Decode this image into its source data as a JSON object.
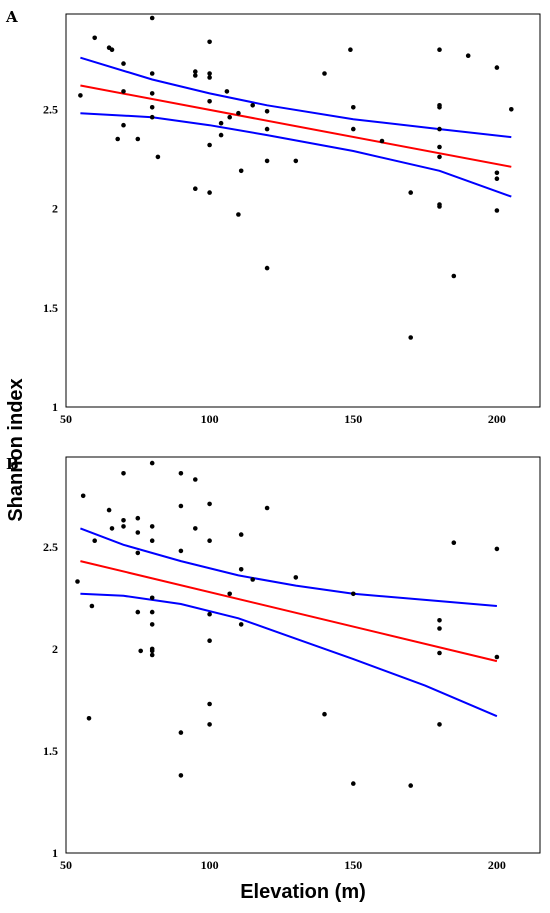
{
  "figure": {
    "ylabel": "Shannon index",
    "xlabel": "Elevation (m)"
  },
  "chart_data": [
    {
      "type": "scatter",
      "panel": "A",
      "xlim": [
        50,
        215
      ],
      "ylim": [
        1,
        2.98
      ],
      "x_ticks": [
        50,
        100,
        150,
        200
      ],
      "y_ticks": [
        1,
        1.5,
        2,
        2.5
      ],
      "x_tick_labels": [
        "50",
        "100",
        "150",
        "200"
      ],
      "y_tick_labels": [
        "1",
        "1.5",
        "2",
        "2.5"
      ],
      "points": [
        [
          55,
          2.57
        ],
        [
          60,
          2.86
        ],
        [
          65,
          2.81
        ],
        [
          66,
          2.8
        ],
        [
          68,
          2.35
        ],
        [
          70,
          2.73
        ],
        [
          70,
          2.59
        ],
        [
          70,
          2.42
        ],
        [
          75,
          2.35
        ],
        [
          80,
          2.96
        ],
        [
          80,
          2.68
        ],
        [
          80,
          2.58
        ],
        [
          80,
          2.51
        ],
        [
          80,
          2.46
        ],
        [
          82,
          2.26
        ],
        [
          95,
          2.69
        ],
        [
          95,
          2.67
        ],
        [
          95,
          2.1
        ],
        [
          100,
          2.84
        ],
        [
          100,
          2.68
        ],
        [
          100,
          2.66
        ],
        [
          100,
          2.54
        ],
        [
          100,
          2.32
        ],
        [
          100,
          2.08
        ],
        [
          104,
          2.43
        ],
        [
          104,
          2.37
        ],
        [
          106,
          2.59
        ],
        [
          107,
          2.46
        ],
        [
          110,
          2.48
        ],
        [
          110,
          1.97
        ],
        [
          111,
          2.19
        ],
        [
          115,
          2.52
        ],
        [
          120,
          2.49
        ],
        [
          120,
          2.4
        ],
        [
          120,
          2.24
        ],
        [
          120,
          1.7
        ],
        [
          130,
          2.24
        ],
        [
          140,
          2.68
        ],
        [
          149,
          2.8
        ],
        [
          150,
          2.51
        ],
        [
          150,
          2.4
        ],
        [
          160,
          2.34
        ],
        [
          170,
          2.08
        ],
        [
          170,
          1.35
        ],
        [
          180,
          2.8
        ],
        [
          180,
          2.52
        ],
        [
          180,
          2.51
        ],
        [
          180,
          2.4
        ],
        [
          180,
          2.31
        ],
        [
          180,
          2.26
        ],
        [
          180,
          2.01
        ],
        [
          180,
          2.02
        ],
        [
          185,
          1.66
        ],
        [
          190,
          2.77
        ],
        [
          200,
          2.71
        ],
        [
          200,
          2.18
        ],
        [
          200,
          2.15
        ],
        [
          200,
          1.99
        ],
        [
          205,
          2.5
        ]
      ],
      "fit": {
        "x": [
          55,
          205
        ],
        "y": [
          2.62,
          2.21
        ],
        "color": "#ff0000"
      },
      "ci_upper": {
        "x": [
          55,
          80,
          100,
          120,
          150,
          180,
          205
        ],
        "y": [
          2.76,
          2.65,
          2.58,
          2.52,
          2.45,
          2.4,
          2.36
        ],
        "color": "#0000ff"
      },
      "ci_lower": {
        "x": [
          55,
          80,
          100,
          120,
          150,
          180,
          205
        ],
        "y": [
          2.48,
          2.46,
          2.42,
          2.37,
          2.29,
          2.19,
          2.06
        ],
        "color": "#0000ff"
      }
    },
    {
      "type": "scatter",
      "panel": "B",
      "xlim": [
        50,
        215
      ],
      "ylim": [
        1,
        2.94
      ],
      "x_ticks": [
        50,
        100,
        150,
        200
      ],
      "y_ticks": [
        1,
        1.5,
        2,
        2.5
      ],
      "x_tick_labels": [
        "50",
        "100",
        "150",
        "200"
      ],
      "y_tick_labels": [
        "1",
        "1.5",
        "2",
        "2.5"
      ],
      "points": [
        [
          54,
          2.33
        ],
        [
          56,
          2.75
        ],
        [
          58,
          1.66
        ],
        [
          59,
          2.21
        ],
        [
          60,
          2.53
        ],
        [
          65,
          2.68
        ],
        [
          66,
          2.59
        ],
        [
          70,
          2.86
        ],
        [
          70,
          2.63
        ],
        [
          70,
          2.6
        ],
        [
          75,
          2.64
        ],
        [
          75,
          2.57
        ],
        [
          75,
          2.47
        ],
        [
          75,
          2.18
        ],
        [
          76,
          1.99
        ],
        [
          80,
          2.91
        ],
        [
          80,
          2.6
        ],
        [
          80,
          2.53
        ],
        [
          80,
          2.25
        ],
        [
          80,
          2.18
        ],
        [
          80,
          2.12
        ],
        [
          80,
          2.0
        ],
        [
          80,
          1.99
        ],
        [
          80,
          1.97
        ],
        [
          90,
          2.86
        ],
        [
          90,
          2.7
        ],
        [
          90,
          2.48
        ],
        [
          90,
          1.59
        ],
        [
          90,
          1.38
        ],
        [
          95,
          2.83
        ],
        [
          95,
          2.59
        ],
        [
          100,
          2.71
        ],
        [
          100,
          2.53
        ],
        [
          100,
          2.17
        ],
        [
          100,
          2.04
        ],
        [
          100,
          1.73
        ],
        [
          100,
          1.63
        ],
        [
          107,
          2.27
        ],
        [
          111,
          2.56
        ],
        [
          111,
          2.39
        ],
        [
          111,
          2.12
        ],
        [
          115,
          2.34
        ],
        [
          120,
          2.69
        ],
        [
          130,
          2.35
        ],
        [
          140,
          1.68
        ],
        [
          150,
          2.27
        ],
        [
          150,
          1.34
        ],
        [
          170,
          1.33
        ],
        [
          180,
          2.14
        ],
        [
          180,
          2.1
        ],
        [
          180,
          1.98
        ],
        [
          180,
          1.63
        ],
        [
          185,
          2.52
        ],
        [
          200,
          2.49
        ],
        [
          200,
          1.96
        ]
      ],
      "fit": {
        "x": [
          55,
          200
        ],
        "y": [
          2.43,
          1.94
        ],
        "color": "#ff0000"
      },
      "ci_upper": {
        "x": [
          55,
          70,
          90,
          110,
          130,
          150,
          175,
          200
        ],
        "y": [
          2.59,
          2.51,
          2.43,
          2.36,
          2.31,
          2.27,
          2.24,
          2.21
        ],
        "color": "#0000ff"
      },
      "ci_lower": {
        "x": [
          55,
          70,
          90,
          110,
          130,
          150,
          175,
          200
        ],
        "y": [
          2.27,
          2.26,
          2.22,
          2.15,
          2.05,
          1.95,
          1.82,
          1.67
        ],
        "color": "#0000ff"
      }
    }
  ]
}
